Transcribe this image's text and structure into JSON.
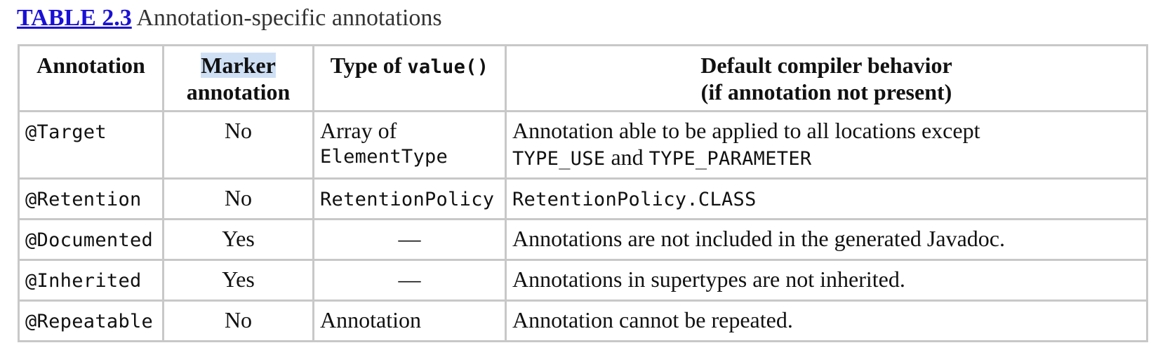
{
  "caption": {
    "label": "TABLE 2.3",
    "title": "Annotation-specific annotations"
  },
  "table": {
    "headers": {
      "annotation": "Annotation",
      "marker_line1": "Marker",
      "marker_line2": "annotation",
      "type_prefix": "Type of",
      "type_code": "value()",
      "default_line1": "Default compiler behavior",
      "default_line2": "(if annotation not present)"
    },
    "rows": [
      {
        "annotation": "@Target",
        "marker": "No",
        "type_line1": "Array of",
        "type_line2": "ElementType",
        "default_line1": "Annotation able to be applied to all locations except",
        "default_code1": "TYPE_USE",
        "default_mid": "and",
        "default_code2": "TYPE_PARAMETER"
      },
      {
        "annotation": "@Retention",
        "marker": "No",
        "type": "RetentionPolicy",
        "default": "RetentionPolicy.CLASS"
      },
      {
        "annotation": "@Documented",
        "marker": "Yes",
        "type": "—",
        "default": "Annotations are not included in the generated Javadoc."
      },
      {
        "annotation": "@Inherited",
        "marker": "Yes",
        "type": "—",
        "default": "Annotations in supertypes are not inherited."
      },
      {
        "annotation": "@Repeatable",
        "marker": "No",
        "type": "Annotation",
        "default": "Annotation cannot be repeated."
      }
    ]
  }
}
